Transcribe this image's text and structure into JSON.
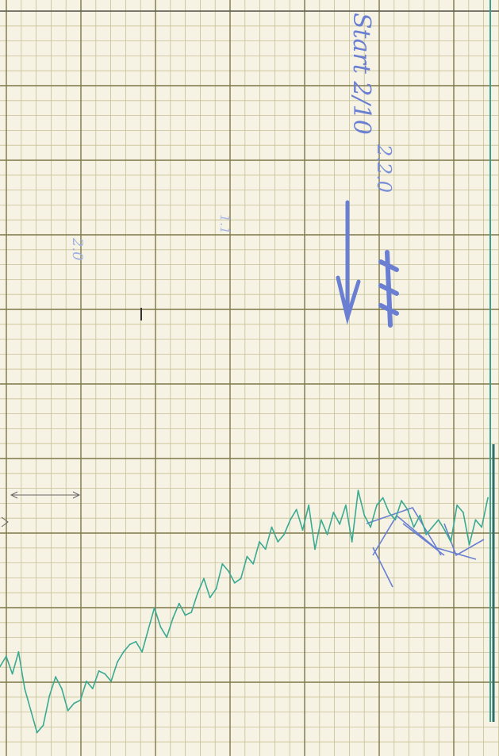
{
  "chart_data": {
    "type": "line",
    "title": "",
    "xlabel": "",
    "ylabel": "",
    "grid": true,
    "series": [
      {
        "values": [
          0.35,
          0.42,
          0.3,
          0.45,
          0.2,
          0.05,
          -0.1,
          -0.05,
          0.15,
          0.28,
          0.2,
          0.05,
          0.1,
          0.12,
          0.25,
          0.2,
          0.32,
          0.3,
          0.25,
          0.38,
          0.45,
          0.5,
          0.52,
          0.45,
          0.6,
          0.75,
          0.62,
          0.55,
          0.68,
          0.78,
          0.7,
          0.72,
          0.85,
          0.95,
          0.82,
          0.88,
          1.05,
          1.0,
          0.92,
          0.95,
          1.1,
          1.05,
          1.2,
          1.15,
          1.3,
          1.2,
          1.25,
          1.35,
          1.42,
          1.28,
          1.45,
          1.15,
          1.35,
          1.25,
          1.4,
          1.32,
          1.45,
          1.2,
          1.55,
          1.38,
          1.3,
          1.45,
          1.5,
          1.4,
          1.35,
          1.48,
          1.42,
          1.3,
          1.38,
          1.25,
          1.3,
          1.35,
          1.28,
          1.2,
          1.45,
          1.4,
          1.18,
          1.35,
          1.3,
          1.5
        ],
        "color": "#3aaa92"
      }
    ],
    "annotations": [
      {
        "text": "Start 2/10",
        "color": "#6a7fd2"
      },
      {
        "text": "2.2.0",
        "color": "#7a8fd8"
      },
      {
        "text": "2.0",
        "color": "#9fb0e0"
      },
      {
        "text": "1.1",
        "color": "#a8b6e4"
      }
    ]
  },
  "colors": {
    "paper": "#f6f3e4",
    "grid_minor": "#c6c094",
    "grid_major": "#7e7748",
    "trace": "#3aaa92",
    "pen": "#6a7fd2",
    "trace_right": "#3a9f8f"
  }
}
